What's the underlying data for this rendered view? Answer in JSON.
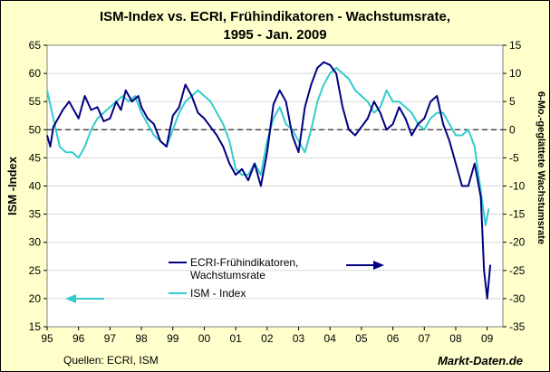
{
  "chart_data": {
    "type": "line",
    "title": "ISM-Index vs. ECRI, Frühindikatoren - Wachstumsrate,",
    "subtitle": "1995 -  Jan. 2009",
    "ylabel_left": "ISM -Index",
    "ylabel_right": "6-Mo.-geglättete Wachstumsrate",
    "ylim_left": [
      15,
      65
    ],
    "ylim_right": [
      -35,
      15
    ],
    "yticks_left": [
      "15",
      "20",
      "25",
      "30",
      "35",
      "40",
      "45",
      "50",
      "55",
      "60",
      "65"
    ],
    "yticks_right": [
      "-35",
      "-30",
      "-25",
      "-20",
      "-15",
      "-10",
      "-5",
      "0",
      "5",
      "10",
      "15"
    ],
    "xticks": [
      "95",
      "96",
      "97",
      "98",
      "99",
      "00",
      "01",
      "02",
      "03",
      "04",
      "05",
      "06",
      "07",
      "08",
      "09"
    ],
    "x_start": 1995,
    "x_end": 2009.5,
    "zero_line_right": 0,
    "series": [
      {
        "name": "ECRI-Frühindikatoren, Wachstumsrate",
        "axis": "right",
        "color": "#000080",
        "x": [
          1995.0,
          1995.1,
          1995.2,
          1995.35,
          1995.5,
          1995.7,
          1995.9,
          1996.0,
          1996.2,
          1996.4,
          1996.6,
          1996.8,
          1997.0,
          1997.2,
          1997.35,
          1997.5,
          1997.7,
          1997.9,
          1998.0,
          1998.2,
          1998.4,
          1998.6,
          1998.8,
          1999.0,
          1999.2,
          1999.4,
          1999.6,
          1999.8,
          2000.0,
          2000.2,
          2000.4,
          2000.6,
          2000.8,
          2001.0,
          2001.2,
          2001.4,
          2001.6,
          2001.8,
          2002.0,
          2002.2,
          2002.4,
          2002.6,
          2002.8,
          2003.0,
          2003.2,
          2003.4,
          2003.6,
          2003.8,
          2004.0,
          2004.2,
          2004.4,
          2004.6,
          2004.8,
          2005.0,
          2005.2,
          2005.4,
          2005.6,
          2005.8,
          2006.0,
          2006.2,
          2006.4,
          2006.6,
          2006.8,
          2007.0,
          2007.2,
          2007.4,
          2007.6,
          2007.8,
          2008.0,
          2008.2,
          2008.4,
          2008.6,
          2008.8,
          2008.9,
          2009.0,
          2009.1
        ],
        "values": [
          -1.0,
          -3.0,
          0.5,
          2.0,
          3.5,
          5.0,
          3.0,
          2.0,
          6.0,
          3.5,
          4.0,
          1.5,
          2.0,
          5.0,
          3.5,
          7.0,
          5.0,
          6.0,
          4.0,
          2.0,
          1.0,
          -2.0,
          -3.0,
          2.5,
          4.0,
          8.0,
          6.0,
          3.0,
          2.0,
          0.5,
          -1.0,
          -3.0,
          -6.0,
          -8.0,
          -7.0,
          -9.0,
          -6.0,
          -10.0,
          -4.0,
          4.5,
          7.0,
          5.0,
          -1.0,
          -4.0,
          4.0,
          8.0,
          11.0,
          12.0,
          11.5,
          10.0,
          4.0,
          0.0,
          -1.0,
          0.5,
          2.0,
          5.0,
          3.0,
          0.0,
          1.0,
          4.0,
          2.0,
          -1.0,
          1.0,
          2.0,
          5.0,
          6.0,
          1.0,
          -2.0,
          -6.0,
          -10.0,
          -10.0,
          -6.0,
          -12.0,
          -25.0,
          -30.0,
          -24.0
        ]
      },
      {
        "name": "ISM - Index",
        "axis": "left",
        "color": "#33cccc",
        "x": [
          1995.0,
          1995.2,
          1995.4,
          1995.6,
          1995.8,
          1996.0,
          1996.2,
          1996.4,
          1996.6,
          1996.8,
          1997.0,
          1997.2,
          1997.4,
          1997.6,
          1997.8,
          1998.0,
          1998.2,
          1998.4,
          1998.6,
          1998.8,
          1999.0,
          1999.2,
          1999.4,
          1999.6,
          1999.8,
          2000.0,
          2000.2,
          2000.4,
          2000.6,
          2000.8,
          2001.0,
          2001.2,
          2001.4,
          2001.6,
          2001.8,
          2002.0,
          2002.2,
          2002.4,
          2002.6,
          2002.8,
          2003.0,
          2003.2,
          2003.4,
          2003.6,
          2003.8,
          2004.0,
          2004.2,
          2004.4,
          2004.6,
          2004.8,
          2005.0,
          2005.2,
          2005.4,
          2005.6,
          2005.8,
          2006.0,
          2006.2,
          2006.4,
          2006.6,
          2006.8,
          2007.0,
          2007.2,
          2007.4,
          2007.6,
          2007.8,
          2008.0,
          2008.2,
          2008.4,
          2008.6,
          2008.8,
          2008.95,
          2009.05
        ],
        "values": [
          57.0,
          52.0,
          47.0,
          46.0,
          46.0,
          45.0,
          47.0,
          50.0,
          52.0,
          53.0,
          54.0,
          55.0,
          56.0,
          55.0,
          56.0,
          53.0,
          51.0,
          49.0,
          48.0,
          47.0,
          50.0,
          53.0,
          55.0,
          56.0,
          57.0,
          56.0,
          55.0,
          53.0,
          51.0,
          48.0,
          43.0,
          42.0,
          42.0,
          44.0,
          42.0,
          48.0,
          52.0,
          54.0,
          51.0,
          50.0,
          48.0,
          46.0,
          50.0,
          55.0,
          58.0,
          60.0,
          61.0,
          60.0,
          59.0,
          57.0,
          56.0,
          55.0,
          53.0,
          54.0,
          57.0,
          55.0,
          55.0,
          54.0,
          53.0,
          51.0,
          50.0,
          52.0,
          53.0,
          53.0,
          51.0,
          49.0,
          49.0,
          50.0,
          47.0,
          39.0,
          33.0,
          36.0
        ]
      }
    ],
    "legend": [
      {
        "label": "ECRI-Frühindikatoren,",
        "label2": "Wachstumsrate",
        "color": "#000080"
      },
      {
        "label": "ISM - Index",
        "color": "#33cccc"
      }
    ],
    "source": "Quellen: ECRI, ISM",
    "brand": "Markt-Daten.de"
  }
}
